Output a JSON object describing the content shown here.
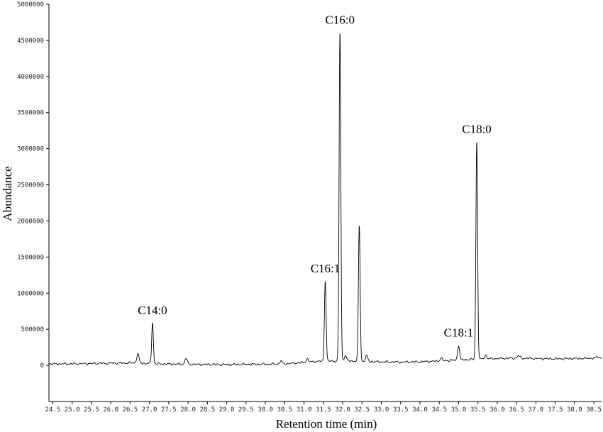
{
  "chart_data": {
    "type": "line",
    "title": "",
    "xlabel": "Retention time (min)",
    "ylabel": "Abundance",
    "xlim": [
      24.4,
      38.7
    ],
    "ylim": [
      -500000,
      5000000
    ],
    "grid": false,
    "legend": "none",
    "x_ticks": [
      24.5,
      25.0,
      25.5,
      26.0,
      26.5,
      27.0,
      27.5,
      28.0,
      28.5,
      29.0,
      29.5,
      30.0,
      30.5,
      31.0,
      31.5,
      32.0,
      32.5,
      33.0,
      33.5,
      34.0,
      34.5,
      35.0,
      35.5,
      36.0,
      36.5,
      37.0,
      37.5,
      38.0,
      38.5
    ],
    "x_tick_labels": [
      "24.5",
      "25.0",
      "25.5",
      "26.0",
      "26.5",
      "27.0",
      "27.5",
      "28.0",
      "28.5",
      "29.0",
      "29.5",
      "30.0",
      "30.5",
      "31.0",
      "31.5",
      "32.0",
      "32.5",
      "33.0",
      "33.5",
      "34.0",
      "34.5",
      "35.0",
      "35.5",
      "36.0",
      "36.5",
      "37.0",
      "37.5",
      "38.0",
      "38.5"
    ],
    "y_ticks": [
      0,
      500000,
      1000000,
      1500000,
      2000000,
      2500000,
      3000000,
      3500000,
      4000000,
      4500000,
      5000000
    ],
    "y_tick_labels": [
      "0",
      "500000",
      "1000000",
      "1500000",
      "2000000",
      "2500000",
      "3000000",
      "3500000",
      "4000000",
      "4500000",
      "5000000"
    ],
    "baseline": [
      [
        24.4,
        20000
      ],
      [
        25.0,
        22000
      ],
      [
        25.5,
        25000
      ],
      [
        26.0,
        30000
      ],
      [
        26.5,
        35000
      ],
      [
        27.0,
        25000
      ],
      [
        27.5,
        18000
      ],
      [
        28.0,
        15000
      ],
      [
        28.5,
        12000
      ],
      [
        29.0,
        12000
      ],
      [
        29.5,
        14000
      ],
      [
        30.0,
        16000
      ],
      [
        30.5,
        22000
      ],
      [
        31.0,
        40000
      ],
      [
        31.3,
        55000
      ],
      [
        31.7,
        60000
      ],
      [
        32.3,
        60000
      ],
      [
        32.8,
        50000
      ],
      [
        33.5,
        45000
      ],
      [
        34.0,
        50000
      ],
      [
        34.5,
        60000
      ],
      [
        35.0,
        75000
      ],
      [
        35.5,
        85000
      ],
      [
        36.0,
        95000
      ],
      [
        36.5,
        100000
      ],
      [
        37.0,
        95000
      ],
      [
        37.5,
        90000
      ],
      [
        38.0,
        95000
      ],
      [
        38.7,
        100000
      ]
    ],
    "peaks": [
      {
        "x": 26.7,
        "y": 160000,
        "width": 0.03
      },
      {
        "x": 27.08,
        "y": 590000,
        "width": 0.022,
        "label": "C14:0"
      },
      {
        "x": 27.95,
        "y": 100000,
        "width": 0.03
      },
      {
        "x": 30.4,
        "y": 60000,
        "width": 0.03
      },
      {
        "x": 31.08,
        "y": 90000,
        "width": 0.03
      },
      {
        "x": 31.55,
        "y": 1170000,
        "width": 0.022,
        "label": "C16:1"
      },
      {
        "x": 31.93,
        "y": 4610000,
        "width": 0.022,
        "label": "C16:0"
      },
      {
        "x": 32.07,
        "y": 140000,
        "width": 0.03
      },
      {
        "x": 32.43,
        "y": 1940000,
        "width": 0.022
      },
      {
        "x": 32.62,
        "y": 130000,
        "width": 0.03
      },
      {
        "x": 34.55,
        "y": 100000,
        "width": 0.03
      },
      {
        "x": 35.0,
        "y": 280000,
        "width": 0.025,
        "label": "C18:1"
      },
      {
        "x": 35.47,
        "y": 3100000,
        "width": 0.022,
        "label": "C18:0"
      },
      {
        "x": 35.7,
        "y": 140000,
        "width": 0.03
      },
      {
        "x": 36.55,
        "y": 130000,
        "width": 0.04
      },
      {
        "x": 38.6,
        "y": 120000,
        "width": 0.04
      }
    ]
  }
}
